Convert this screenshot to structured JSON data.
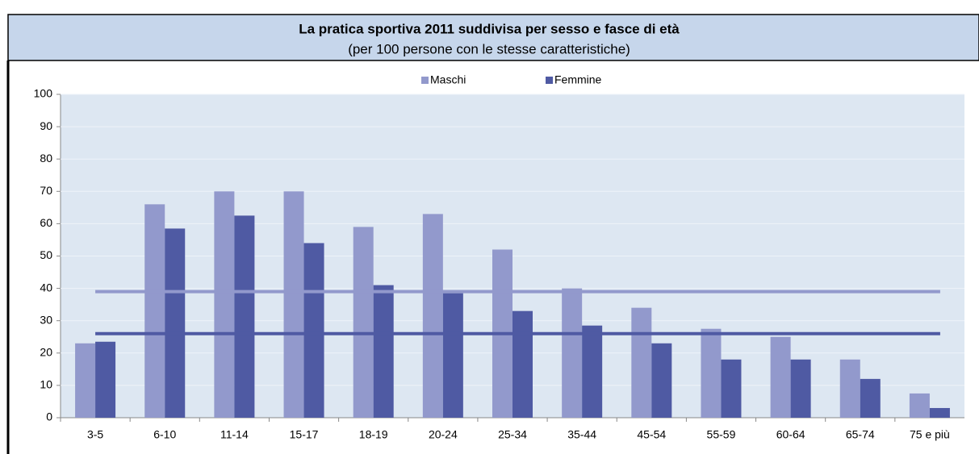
{
  "chart_data": {
    "type": "bar",
    "title": "La pratica sportiva 2011 suddivisa per sesso e fasce di età",
    "subtitle": "(per 100 persone con le stesse caratteristiche)",
    "categories": [
      "3-5",
      "6-10",
      "11-14",
      "15-17",
      "18-19",
      "20-24",
      "25-34",
      "35-44",
      "45-54",
      "55-59",
      "60-64",
      "65-74",
      "75 e più"
    ],
    "series": [
      {
        "name": "Maschi",
        "color": "#9299cc",
        "values": [
          23,
          66,
          70,
          70,
          59,
          63,
          52,
          40,
          34,
          27.5,
          25,
          18,
          7.5
        ]
      },
      {
        "name": "Femmine",
        "color": "#4f5aa3",
        "values": [
          23.5,
          58.5,
          62.5,
          54,
          41,
          38.5,
          33,
          28.5,
          23,
          18,
          18,
          12,
          3
        ]
      }
    ],
    "reference_lines": [
      {
        "value": 39,
        "color": "#9299cc"
      },
      {
        "value": 26,
        "color": "#4f5aa3"
      }
    ],
    "ylim": [
      0,
      100
    ],
    "yticks": [
      0,
      10,
      20,
      30,
      40,
      50,
      60,
      70,
      80,
      90,
      100
    ],
    "grid": true
  }
}
